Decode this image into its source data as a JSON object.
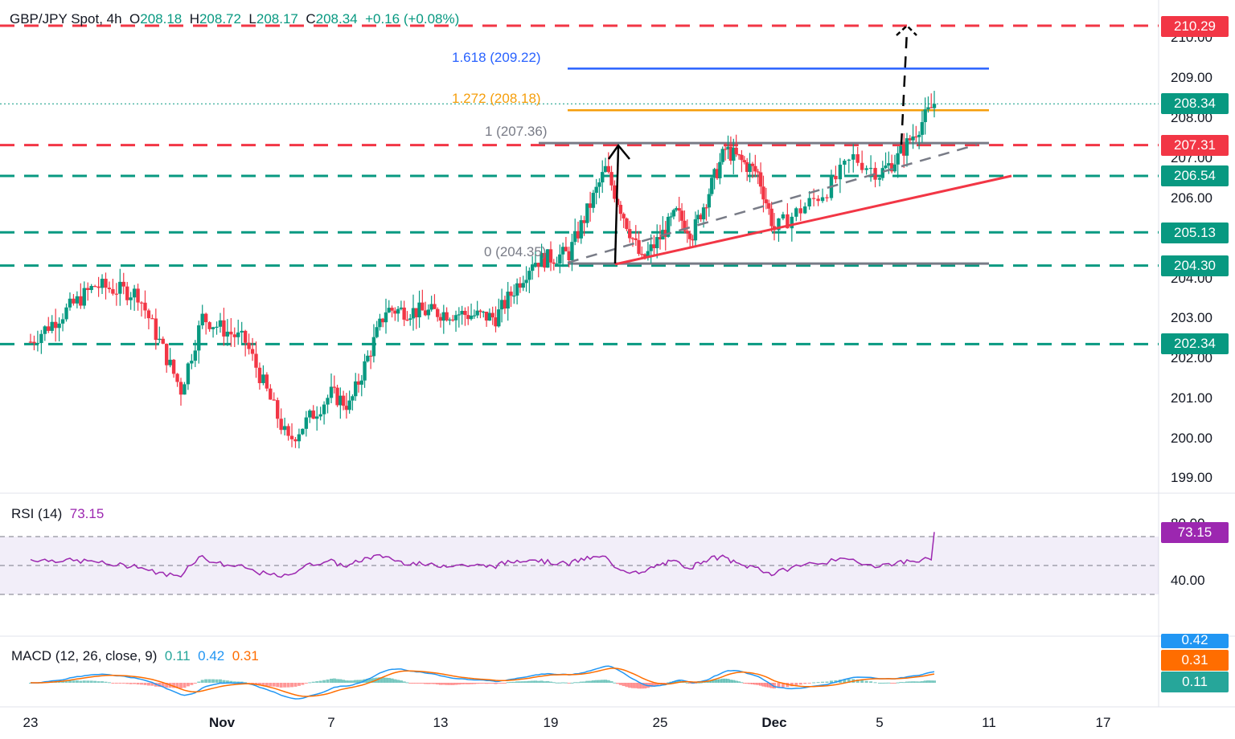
{
  "header": {
    "symbol": "GBP/JPY Spot, 4h",
    "o_label": "O",
    "o": "208.18",
    "h_label": "H",
    "h": "208.72",
    "l_label": "L",
    "l": "208.17",
    "c_label": "C",
    "c": "208.34",
    "change": "+0.16 (+0.08%)"
  },
  "price_axis": {
    "ticks": [
      "210.00",
      "209.00",
      "208.00",
      "207.00",
      "206.00",
      "204.00",
      "203.00",
      "202.00",
      "201.00",
      "200.00",
      "199.00"
    ],
    "labels": [
      {
        "text": "210.29",
        "color": "#f23645"
      },
      {
        "text": "208.34",
        "color": "#089981"
      },
      {
        "text": "207.31",
        "color": "#f23645"
      },
      {
        "text": "206.54",
        "color": "#089981"
      },
      {
        "text": "205.13",
        "color": "#089981"
      },
      {
        "text": "204.30",
        "color": "#089981"
      },
      {
        "text": "202.34",
        "color": "#089981"
      }
    ]
  },
  "fib_labels": [
    {
      "text": "1.618 (209.22)",
      "color": "#2962ff"
    },
    {
      "text": "1.272 (208.18)",
      "color": "#f59e0b"
    },
    {
      "text": "1 (207.36)",
      "color": "#787b86"
    },
    {
      "text": "0 (204.35)",
      "color": "#787b86"
    }
  ],
  "x_axis": [
    "23",
    "Nov",
    "7",
    "13",
    "19",
    "25",
    "Dec",
    "5",
    "11",
    "17"
  ],
  "rsi": {
    "title": "RSI (14)",
    "value": "73.15",
    "ticks": [
      "80.00",
      "40.00"
    ],
    "label": "73.15",
    "color": "#9c27b0"
  },
  "macd": {
    "title": "MACD (12, 26, close, 9)",
    "hist": "0.11",
    "macd": "0.42",
    "signal": "0.31",
    "labels": [
      {
        "text": "0.42",
        "color": "#2196f3"
      },
      {
        "text": "0.31",
        "color": "#ff6d00"
      },
      {
        "text": "0.11",
        "color": "#26a69a"
      }
    ]
  },
  "colors": {
    "up": "#089981",
    "down": "#f23645",
    "fib1618": "#2962ff",
    "fib1272": "#f59e0b",
    "support": "#089981",
    "resistance": "#f23645"
  },
  "chart_data": {
    "type": "candlestick",
    "title": "GBP/JPY Spot, 4h",
    "ylim": [
      198.7,
      210.6
    ],
    "waypoints": [
      {
        "t": "23",
        "price": 202.4
      },
      {
        "t": "Oct 26",
        "price": 203.8
      },
      {
        "t": "Oct 28",
        "price": 203.6
      },
      {
        "t": "Oct 30",
        "price": 201.2
      },
      {
        "t": "Oct 31",
        "price": 203.0
      },
      {
        "t": "Nov 2",
        "price": 202.4
      },
      {
        "t": "Nov 4",
        "price": 199.9
      },
      {
        "t": "Nov 6",
        "price": 201.1
      },
      {
        "t": "Nov 7",
        "price": 200.8
      },
      {
        "t": "Nov 9",
        "price": 203.2
      },
      {
        "t": "Nov 13",
        "price": 203.1
      },
      {
        "t": "Nov 15",
        "price": 203.0
      },
      {
        "t": "Nov 17",
        "price": 204.4
      },
      {
        "t": "Nov 19",
        "price": 204.6
      },
      {
        "t": "Nov 21",
        "price": 206.7
      },
      {
        "t": "Nov 23",
        "price": 204.4
      },
      {
        "t": "Nov 25",
        "price": 205.6
      },
      {
        "t": "Nov 26",
        "price": 205.1
      },
      {
        "t": "Nov 28",
        "price": 207.2
      },
      {
        "t": "Nov 30",
        "price": 206.6
      },
      {
        "t": "Dec 1",
        "price": 205.2
      },
      {
        "t": "Dec 3",
        "price": 206.2
      },
      {
        "t": "Dec 4",
        "price": 207.0
      },
      {
        "t": "Dec 5",
        "price": 206.6
      },
      {
        "t": "Dec 6",
        "price": 207.0
      },
      {
        "t": "Dec 8",
        "price": 208.34
      }
    ],
    "levels": {
      "resistance": [
        210.29,
        207.31
      ],
      "support": [
        206.54,
        205.13,
        204.3,
        202.34
      ],
      "fibonacci": {
        "0": 204.35,
        "1": 207.36,
        "1.272": 208.18,
        "1.618": 209.22
      }
    },
    "rsi_last": 73.15,
    "macd_last": {
      "macd": 0.42,
      "signal": 0.31,
      "hist": 0.11
    }
  }
}
